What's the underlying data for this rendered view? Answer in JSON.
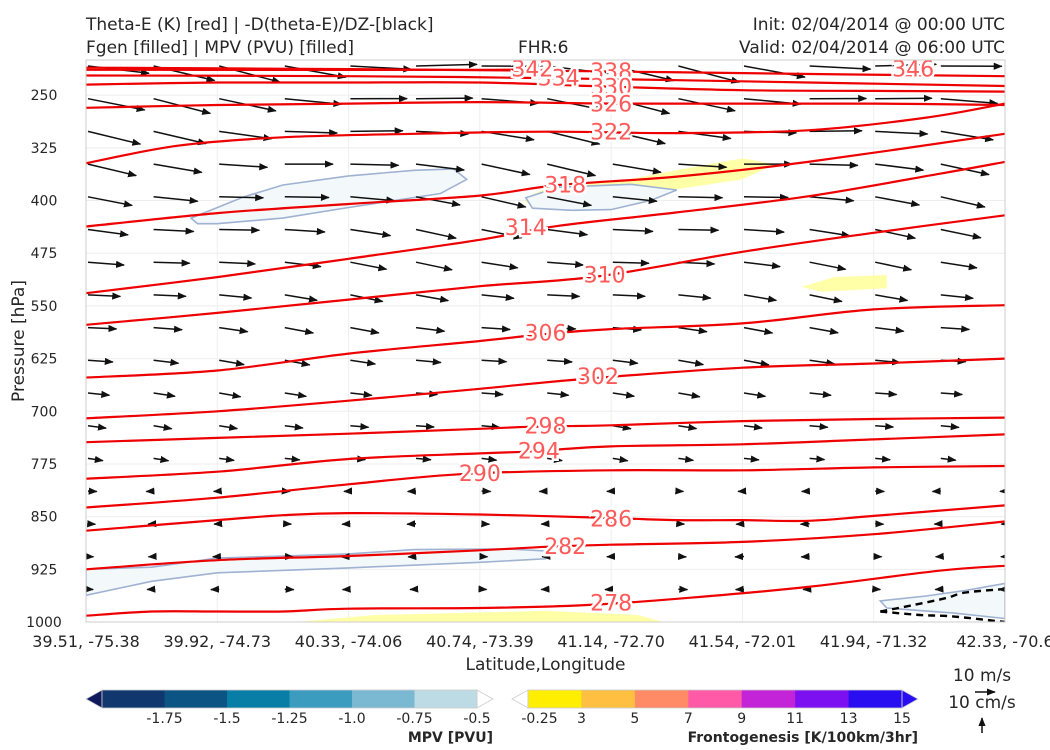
{
  "header": {
    "title_line1": "Theta-E (K) [red] | -D(theta-E)/DZ-[black]",
    "title_line2": "Fgen [filled] | MPV (PVU) [filled]",
    "fhr": "FHR:6",
    "init": "Init: 02/04/2014 @ 00:00 UTC",
    "valid": "Valid: 02/04/2014 @ 06:00 UTC"
  },
  "colors": {
    "theta_e": "#ee0000",
    "theta_e_label": "#ff5a5a",
    "vectors": "#111111",
    "fgen_low": "#ffff99",
    "mpv_fill": "#f3f9fa",
    "mpv_edge": "#9fb2d2"
  },
  "chart_data": {
    "type": "cross-section",
    "xlabel": "Latitude,Longitude",
    "ylabel": "Pressure [hPa]",
    "x_ticks": [
      "39.51, -75.38",
      "39.92, -74.73",
      "40.33, -74.06",
      "40.74, -73.39",
      "41.14, -72.70",
      "41.54, -72.01",
      "41.94, -71.32",
      "42.33, -70.6"
    ],
    "y_ticks": [
      250,
      325,
      400,
      475,
      550,
      625,
      700,
      775,
      850,
      925,
      1000
    ],
    "ylim": [
      1000,
      200
    ],
    "xlim": [
      0,
      7
    ],
    "theta_e": [
      {
        "level": 342,
        "points": [
          [
            0,
            214
          ],
          [
            3,
            214
          ],
          [
            3.3,
            213
          ]
        ]
      },
      {
        "level": 338,
        "points": [
          [
            0,
            211
          ],
          [
            2,
            213
          ],
          [
            3.8,
            216
          ],
          [
            5.6,
            220
          ],
          [
            7,
            223
          ]
        ]
      },
      {
        "level": 334,
        "points": [
          [
            0,
            222
          ],
          [
            2,
            223
          ],
          [
            3.6,
            226
          ],
          [
            5.5,
            232
          ],
          [
            7,
            237
          ]
        ]
      },
      {
        "level": 330,
        "points": [
          [
            0,
            235
          ],
          [
            1,
            232
          ],
          [
            2,
            232
          ],
          [
            3,
            232
          ],
          [
            4,
            238
          ],
          [
            5,
            243
          ],
          [
            6,
            244
          ],
          [
            7,
            245
          ]
        ]
      },
      {
        "level": 326,
        "points": [
          [
            0,
            268
          ],
          [
            1,
            264
          ],
          [
            2,
            262
          ],
          [
            3,
            260
          ],
          [
            4,
            262
          ],
          [
            5,
            262
          ],
          [
            6,
            262
          ],
          [
            7,
            264
          ]
        ]
      },
      {
        "level": 322,
        "points": [
          [
            0,
            347
          ],
          [
            0.7,
            322
          ],
          [
            1.5,
            310
          ],
          [
            2.5,
            305
          ],
          [
            3.5,
            302
          ],
          [
            4.5,
            304
          ],
          [
            5.5,
            300
          ],
          [
            6.4,
            282
          ],
          [
            7,
            262
          ]
        ]
      },
      {
        "level": 318,
        "points": [
          [
            0,
            437
          ],
          [
            1,
            418
          ],
          [
            2,
            405
          ],
          [
            3,
            393
          ],
          [
            3.6,
            378
          ],
          [
            4.5,
            366
          ],
          [
            5.5,
            345
          ],
          [
            7,
            305
          ]
        ]
      },
      {
        "level": 314,
        "points": [
          [
            0,
            532
          ],
          [
            1,
            509
          ],
          [
            2,
            483
          ],
          [
            3,
            456
          ],
          [
            3.6,
            436
          ],
          [
            4.5,
            417
          ],
          [
            5.5,
            394
          ],
          [
            6.5,
            362
          ],
          [
            7,
            345
          ]
        ]
      },
      {
        "level": 310,
        "points": [
          [
            0,
            577
          ],
          [
            1,
            560
          ],
          [
            2,
            541
          ],
          [
            3,
            522
          ],
          [
            3.9,
            508
          ],
          [
            5,
            473
          ],
          [
            6,
            446
          ],
          [
            7,
            421
          ]
        ]
      },
      {
        "level": 306,
        "points": [
          [
            0,
            652
          ],
          [
            1,
            642
          ],
          [
            2,
            618
          ],
          [
            3,
            600
          ],
          [
            3.5,
            590
          ],
          [
            4,
            583
          ],
          [
            5,
            575
          ],
          [
            6,
            555
          ],
          [
            7,
            549
          ]
        ]
      },
      {
        "level": 302,
        "points": [
          [
            0,
            710
          ],
          [
            1,
            700
          ],
          [
            2,
            685
          ],
          [
            3,
            668
          ],
          [
            3.8,
            654
          ],
          [
            5,
            638
          ],
          [
            6,
            632
          ],
          [
            7,
            625
          ]
        ]
      },
      {
        "level": 298,
        "points": [
          [
            0,
            744
          ],
          [
            1,
            738
          ],
          [
            2,
            732
          ],
          [
            3,
            725
          ],
          [
            3.4,
            722
          ],
          [
            4,
            720
          ],
          [
            5,
            714
          ],
          [
            6,
            711
          ],
          [
            7,
            709
          ]
        ]
      },
      {
        "level": 294,
        "points": [
          [
            0,
            796
          ],
          [
            1,
            786
          ],
          [
            2,
            768
          ],
          [
            3,
            760
          ],
          [
            3.4,
            757
          ],
          [
            4,
            750
          ],
          [
            5,
            747
          ],
          [
            6,
            740
          ],
          [
            7,
            733
          ]
        ]
      },
      {
        "level": 290,
        "points": [
          [
            0,
            837
          ],
          [
            1,
            823
          ],
          [
            2,
            804
          ],
          [
            2.9,
            789
          ],
          [
            4,
            784
          ],
          [
            5,
            784
          ],
          [
            6,
            780
          ],
          [
            7,
            778
          ]
        ]
      },
      {
        "level": 286,
        "points": [
          [
            0,
            870
          ],
          [
            1,
            855
          ],
          [
            1.5,
            848
          ],
          [
            2,
            845
          ],
          [
            3,
            847
          ],
          [
            4,
            852
          ],
          [
            4.5,
            855
          ],
          [
            5,
            855
          ],
          [
            5.5,
            856
          ],
          [
            6,
            849
          ],
          [
            7,
            834
          ]
        ]
      },
      {
        "level": 282,
        "points": [
          [
            0,
            925
          ],
          [
            1,
            912
          ],
          [
            2,
            906
          ],
          [
            3,
            898
          ],
          [
            3.5,
            893
          ],
          [
            4,
            890
          ],
          [
            5,
            886
          ],
          [
            6,
            875
          ],
          [
            7,
            857
          ]
        ]
      },
      {
        "level": 278,
        "points": [
          [
            0,
            991
          ],
          [
            0.5,
            985
          ],
          [
            1,
            985
          ],
          [
            1.5,
            985
          ],
          [
            2,
            981
          ],
          [
            3,
            980
          ],
          [
            3.8,
            976
          ],
          [
            4.5,
            967
          ],
          [
            5.5,
            950
          ],
          [
            6.5,
            927
          ],
          [
            7,
            920
          ]
        ]
      }
    ],
    "contour_labels": [
      {
        "level": 338,
        "x": 4.0,
        "p": 216
      },
      {
        "level": 334,
        "x": 3.6,
        "p": 225
      },
      {
        "level": 330,
        "x": 4.0,
        "p": 238
      },
      {
        "level": 326,
        "x": 4.0,
        "p": 262
      },
      {
        "level": 322,
        "x": 4.0,
        "p": 302
      },
      {
        "level": 318,
        "x": 3.65,
        "p": 377
      },
      {
        "level": 314,
        "x": 3.35,
        "p": 438
      },
      {
        "level": 310,
        "x": 3.95,
        "p": 505
      },
      {
        "level": 306,
        "x": 3.5,
        "p": 588
      },
      {
        "level": 302,
        "x": 3.9,
        "p": 650
      },
      {
        "level": 298,
        "x": 3.5,
        "p": 720
      },
      {
        "level": 294,
        "x": 3.45,
        "p": 756
      },
      {
        "level": 290,
        "x": 3.0,
        "p": 788
      },
      {
        "level": 286,
        "x": 4.0,
        "p": 853
      },
      {
        "level": 282,
        "x": 3.65,
        "p": 892
      },
      {
        "level": 278,
        "x": 4.0,
        "p": 972
      }
    ],
    "partial_labels": [
      {
        "text": "342",
        "x": 3.4,
        "p": 212
      },
      {
        "text": "346",
        "x": 6.3,
        "p": 212
      }
    ],
    "fgen_areas": [
      {
        "points": [
          [
            3.35,
            396
          ],
          [
            3.5,
            383
          ],
          [
            4.1,
            371
          ],
          [
            4.55,
            355
          ],
          [
            5.0,
            340
          ],
          [
            5.25,
            348
          ],
          [
            5.0,
            370
          ],
          [
            4.5,
            384
          ],
          [
            4.2,
            392
          ],
          [
            3.35,
            404
          ]
        ]
      },
      {
        "points": [
          [
            5.45,
            523
          ],
          [
            5.7,
            509
          ],
          [
            6.1,
            506
          ],
          [
            6.1,
            525
          ],
          [
            5.6,
            530
          ]
        ]
      },
      {
        "points": [
          [
            1.6,
            1000
          ],
          [
            2.2,
            990
          ],
          [
            3.5,
            984
          ],
          [
            4.2,
            990
          ],
          [
            4.4,
            1000
          ]
        ]
      }
    ],
    "mpv_areas": [
      {
        "points": [
          [
            0.8,
            425
          ],
          [
            1.2,
            395
          ],
          [
            1.5,
            378
          ],
          [
            2.0,
            365
          ],
          [
            2.5,
            357
          ],
          [
            2.8,
            355
          ],
          [
            2.9,
            370
          ],
          [
            2.7,
            390
          ],
          [
            2.0,
            410
          ],
          [
            1.5,
            425
          ],
          [
            1.0,
            433
          ],
          [
            0.85,
            433
          ]
        ]
      },
      {
        "points": [
          [
            3.35,
            396
          ],
          [
            3.6,
            381
          ],
          [
            4.15,
            377
          ],
          [
            4.5,
            385
          ],
          [
            4.3,
            400
          ],
          [
            4.0,
            413
          ],
          [
            3.7,
            414
          ],
          [
            3.4,
            411
          ]
        ]
      },
      {
        "points": [
          [
            0,
            925
          ],
          [
            0.5,
            922
          ],
          [
            1.0,
            909
          ],
          [
            1.5,
            906
          ],
          [
            2.0,
            903
          ],
          [
            2.5,
            897
          ],
          [
            3.2,
            896
          ],
          [
            3.5,
            899
          ],
          [
            3.5,
            910
          ],
          [
            3.0,
            915
          ],
          [
            2.0,
            923
          ],
          [
            1.0,
            930
          ],
          [
            0.5,
            942
          ],
          [
            0,
            962
          ]
        ]
      },
      {
        "points": [
          [
            6.05,
            970
          ],
          [
            6.4,
            963
          ],
          [
            6.7,
            955
          ],
          [
            7.0,
            945
          ],
          [
            7.0,
            995
          ],
          [
            6.6,
            987
          ],
          [
            6.3,
            983
          ],
          [
            6.1,
            980
          ]
        ]
      }
    ],
    "mpv_dashed": [
      [
        6.05,
        985
      ],
      [
        6.3,
        976
      ],
      [
        6.55,
        966
      ],
      [
        6.7,
        958
      ],
      [
        7.0,
        953
      ]
    ],
    "mpv_dashed2": [
      [
        6.05,
        985
      ],
      [
        6.35,
        990
      ],
      [
        6.6,
        992
      ],
      [
        7.0,
        1000
      ]
    ],
    "mpv_colorbar": {
      "title": "MPV [PVU]",
      "ticks": [
        "-1.75",
        "-1.5",
        "-1.25",
        "-1.0",
        "-0.75",
        "-0.5",
        "-0.25"
      ],
      "colors": [
        "#0f1a5c",
        "#10386e",
        "#0b5484",
        "#087ea6",
        "#3b9cc0",
        "#7bb9d2",
        "#bcdbe4",
        "#ffffff"
      ]
    },
    "fgen_colorbar": {
      "title": "Frontogenesis [K/100km/3hr]",
      "ticks": [
        "3",
        "5",
        "7",
        "9",
        "11",
        "13",
        "15"
      ],
      "colors": [
        "#ffffff",
        "#ffee00",
        "#ffbf40",
        "#ff8a66",
        "#ff5aa8",
        "#c424d8",
        "#7d10f0",
        "#2a0ef2",
        "#2a0ef2"
      ]
    },
    "reference": {
      "wind": "10 m/s",
      "vertical": "10 cm/s"
    }
  }
}
